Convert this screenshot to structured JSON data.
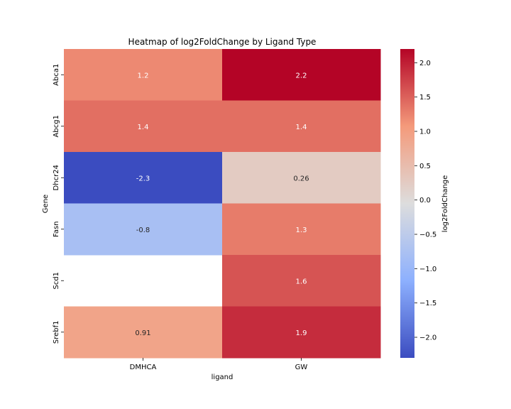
{
  "chart_data": {
    "type": "heatmap",
    "title": "Heatmap of log2FoldChange by Ligand Type",
    "xlabel": "ligand",
    "ylabel": "Gene",
    "x_categories": [
      "DMHCA",
      "GW"
    ],
    "y_categories": [
      "Abca1",
      "Abcg1",
      "Dhcr24",
      "Fasn",
      "Scd1",
      "Srebf1"
    ],
    "values": [
      [
        1.2,
        2.2
      ],
      [
        1.4,
        1.4
      ],
      [
        -2.3,
        0.26
      ],
      [
        -0.8,
        1.3
      ],
      [
        null,
        1.6
      ],
      [
        0.91,
        1.9
      ]
    ],
    "cell_labels": [
      [
        "1.2",
        "2.2"
      ],
      [
        "1.4",
        "1.4"
      ],
      [
        "-2.3",
        "0.26"
      ],
      [
        "-0.8",
        "1.3"
      ],
      [
        null,
        "1.6"
      ],
      [
        "0.91",
        "1.9"
      ]
    ],
    "colormap": "coolwarm",
    "vmin": -2.3,
    "vmax": 2.2,
    "colorbar": {
      "label": "log2FoldChange",
      "ticks": [
        2.0,
        1.5,
        1.0,
        0.5,
        0.0,
        -0.5,
        -1.0,
        -1.5,
        -2.0
      ],
      "tick_labels": [
        "2.0",
        "1.5",
        "1.0",
        "0.5",
        "0.0",
        "−0.5",
        "−1.0",
        "−1.5",
        "−2.0"
      ]
    },
    "grid": false,
    "missing_cells": "blank"
  }
}
